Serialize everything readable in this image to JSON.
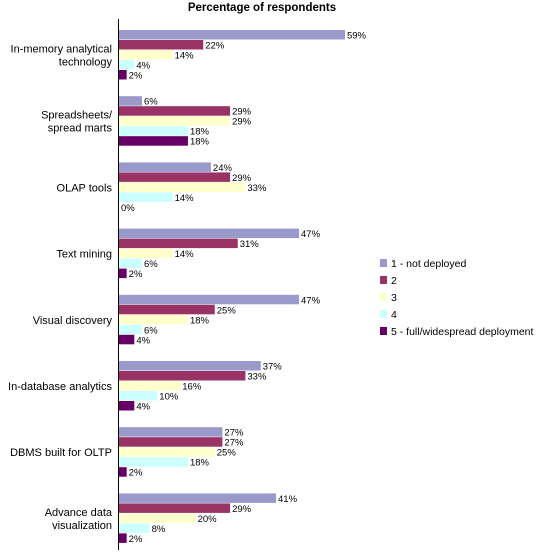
{
  "chart_data": {
    "type": "bar",
    "orientation": "horizontal",
    "title": "Percentage of respondents",
    "xlabel": "",
    "ylabel": "",
    "xlim": [
      0,
      100
    ],
    "grid": false,
    "legend_position": "right",
    "categories": [
      "In-memory analytical technology",
      "Spreadsheets/ spread marts",
      "OLAP tools",
      "Text mining",
      "Visual discovery",
      "In-database analytics",
      "DBMS built for OLTP",
      "Advance data visualization"
    ],
    "category_lines": [
      [
        "In-memory analytical",
        "technology"
      ],
      [
        "Spreadsheets/",
        "spread marts"
      ],
      [
        "OLAP tools"
      ],
      [
        "Text mining"
      ],
      [
        "Visual discovery"
      ],
      [
        "In-database analytics"
      ],
      [
        "DBMS built for OLTP"
      ],
      [
        "Advance data",
        "visualization"
      ]
    ],
    "series": [
      {
        "name": "1 - not deployed",
        "color": "#9999cc",
        "values": [
          59,
          6,
          24,
          47,
          47,
          37,
          27,
          41
        ]
      },
      {
        "name": "2",
        "color": "#993366",
        "values": [
          22,
          29,
          29,
          31,
          25,
          33,
          27,
          29
        ]
      },
      {
        "name": "3",
        "color": "#ffffcc",
        "values": [
          14,
          29,
          33,
          14,
          18,
          16,
          25,
          20
        ]
      },
      {
        "name": "4",
        "color": "#ccffff",
        "values": [
          4,
          18,
          14,
          6,
          6,
          10,
          18,
          8
        ]
      },
      {
        "name": "5 - full/widespread deployment",
        "color": "#660066",
        "values": [
          2,
          18,
          0,
          2,
          4,
          4,
          2,
          2
        ]
      }
    ],
    "value_suffix": "%"
  }
}
